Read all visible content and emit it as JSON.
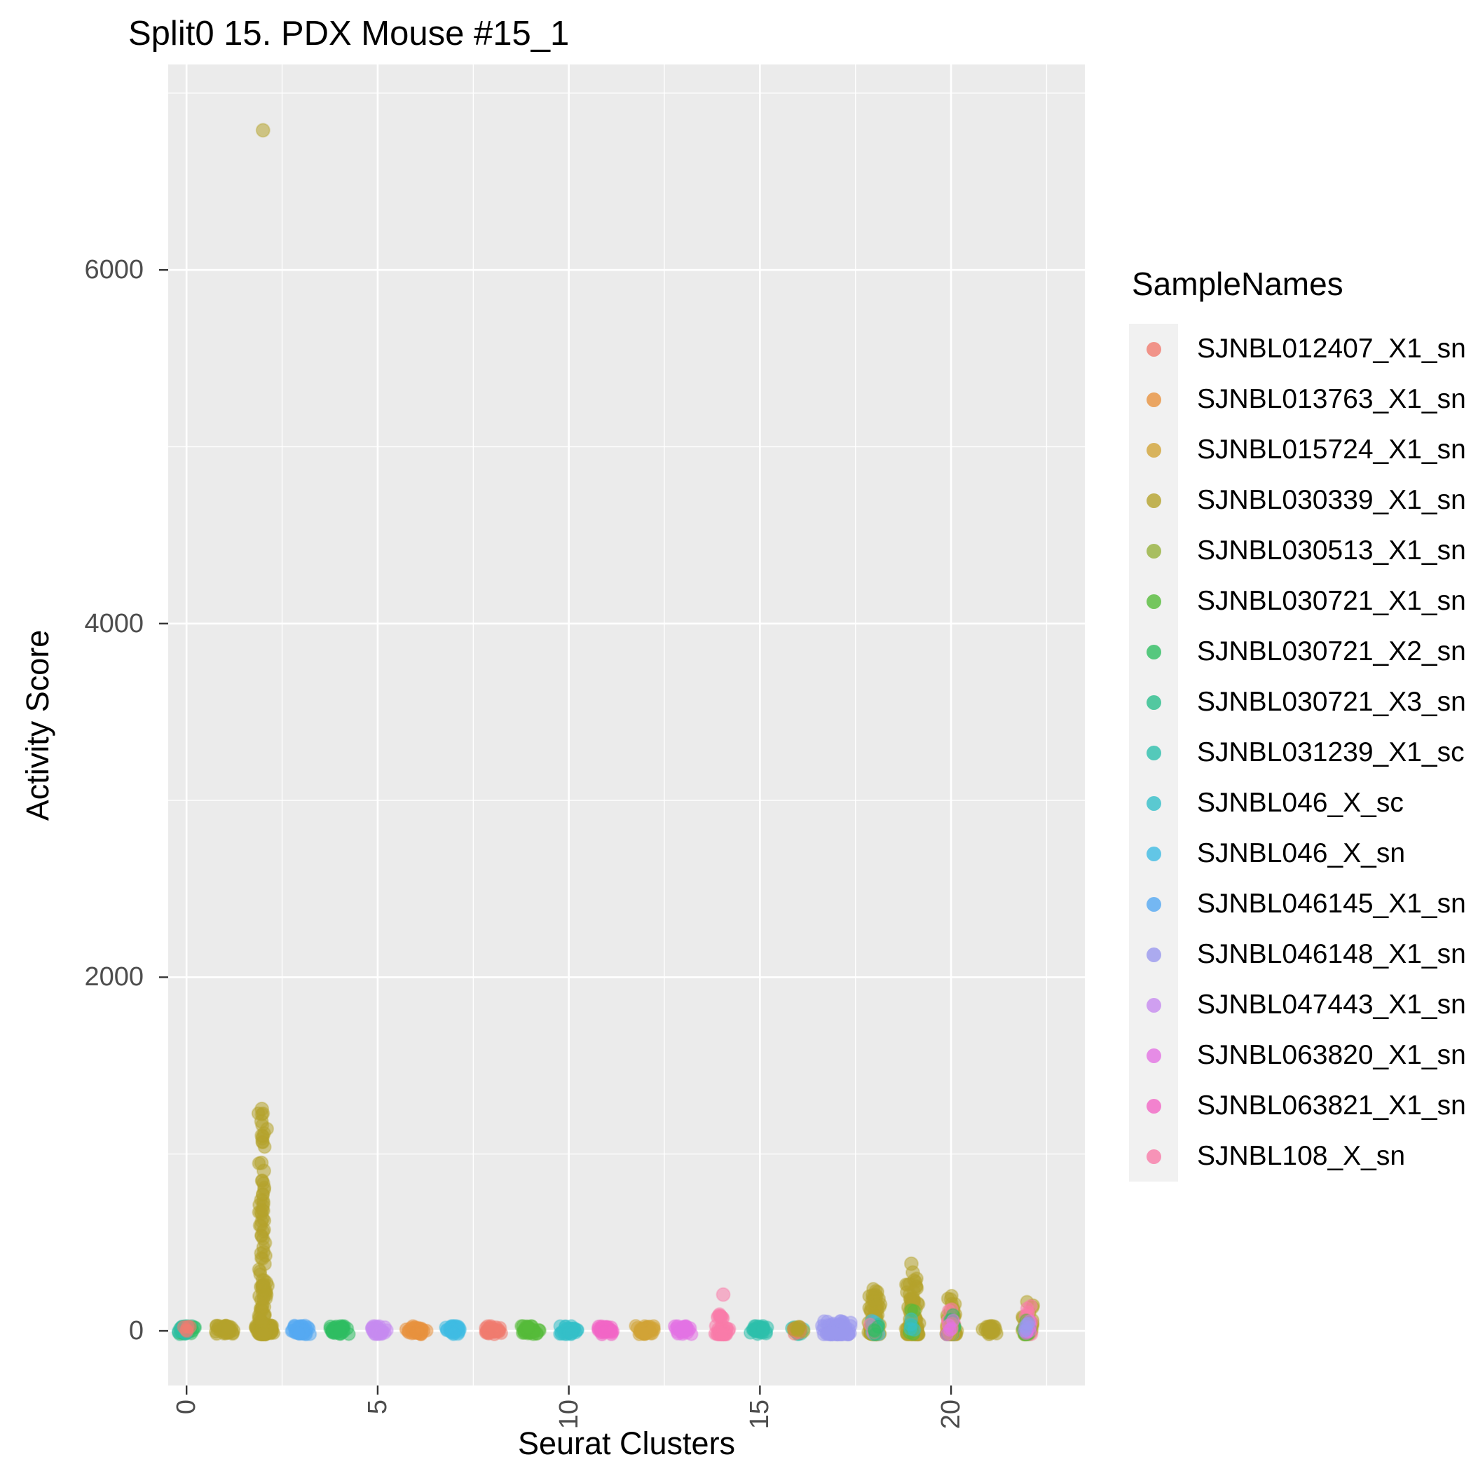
{
  "legend": {
    "title": "SampleNames",
    "items": [
      "SJNBL012407_X1_sn",
      "SJNBL013763_X1_sn",
      "SJNBL015724_X1_sn",
      "SJNBL030339_X1_sn",
      "SJNBL030513_X1_sn",
      "SJNBL030721_X1_sn",
      "SJNBL030721_X2_sn",
      "SJNBL030721_X3_sn",
      "SJNBL031239_X1_sc",
      "SJNBL046_X_sc",
      "SJNBL046_X_sn",
      "SJNBL046145_X1_sn",
      "SJNBL046148_X1_sn",
      "SJNBL047443_X1_sn",
      "SJNBL063820_X1_sn",
      "SJNBL063821_X1_sn",
      "SJNBL108_X_sn"
    ]
  },
  "chart_data": {
    "type": "scatter",
    "title": "Split0 15. PDX Mouse #15_1",
    "xlabel": "Seurat Clusters",
    "ylabel": "Activity Score",
    "x_ticks": [
      0,
      5,
      10,
      15,
      20
    ],
    "x_minor_ticks": [
      2.5,
      7.5,
      12.5,
      17.5,
      22.5
    ],
    "y_ticks": [
      0,
      2000,
      4000,
      6000
    ],
    "y_minor_ticks": [
      1000,
      3000,
      5000,
      7000
    ],
    "xlim": [
      -0.48,
      23.5
    ],
    "ylim": [
      -309,
      7162
    ],
    "panel_bg": "#EBEBEB",
    "grid_color": "#FFFFFF",
    "tick_color": "#333333",
    "point_alpha": 0.55,
    "palette": {
      "SJNBL012407_X1_sn": "#F17C6F",
      "SJNBL013763_X1_sn": "#E8923E",
      "SJNBL015724_X1_sn": "#D2A437",
      "SJNBL030339_X1_sn": "#B5A32C",
      "SJNBL030513_X1_sn": "#96B13C",
      "SJNBL030721_X1_sn": "#55BB3A",
      "SJNBL030721_X2_sn": "#2FBE62",
      "SJNBL030721_X3_sn": "#2BBE8C",
      "SJNBL031239_X1_sc": "#2DBFAC",
      "SJNBL046_X_sc": "#35BFC9",
      "SJNBL046_X_sn": "#3FBCE3",
      "SJNBL046145_X1_sn": "#55A9F2",
      "SJNBL046148_X1_sn": "#9A99EF",
      "SJNBL047443_X1_sn": "#C78BF0",
      "SJNBL063820_X1_sn": "#E373E4",
      "SJNBL063821_X1_sn": "#F266C6",
      "SJNBL108_X_sn": "#F97CA9"
    },
    "clusters": [
      {
        "x": 0,
        "groups": [
          {
            "sample": "SJNBL030721_X3_sn",
            "n": 24,
            "spread": 0.28,
            "ymax": 30,
            "pow": 1
          },
          {
            "sample": "SJNBL030721_X2_sn",
            "n": 14,
            "spread": 0.26,
            "ymax": 28,
            "pow": 1
          },
          {
            "sample": "SJNBL031239_X1_sc",
            "n": 8,
            "spread": 0.22,
            "ymax": 26,
            "pow": 1
          },
          {
            "sample": "SJNBL012407_X1_sn",
            "n": 5,
            "spread": 0.2,
            "ymax": 24,
            "pow": 1
          }
        ],
        "outliers": []
      },
      {
        "x": 1,
        "groups": [
          {
            "sample": "SJNBL030339_X1_sn",
            "n": 42,
            "spread": 0.3,
            "ymax": 30,
            "pow": 1
          }
        ],
        "outliers": []
      },
      {
        "x": 2,
        "groups": [
          {
            "sample": "SJNBL030339_X1_sn",
            "n": 70,
            "spread": 0.3,
            "ymax": 32,
            "pow": 1
          },
          {
            "sample": "SJNBL030339_X1_sn",
            "n": 135,
            "spread": 0.13,
            "ymax": 1230,
            "pow": 3
          }
        ],
        "outliers": [
          {
            "sample": "SJNBL030339_X1_sn",
            "y": 6790
          },
          {
            "sample": "SJNBL030339_X1_sn",
            "y": 1255
          },
          {
            "sample": "SJNBL030339_X1_sn",
            "y": 1185
          },
          {
            "sample": "SJNBL030339_X1_sn",
            "y": 1105
          },
          {
            "sample": "SJNBL030339_X1_sn",
            "y": 950
          },
          {
            "sample": "SJNBL030339_X1_sn",
            "y": 905
          }
        ]
      },
      {
        "x": 3,
        "groups": [
          {
            "sample": "SJNBL046145_X1_sn",
            "n": 38,
            "spread": 0.28,
            "ymax": 30,
            "pow": 1
          }
        ],
        "outliers": []
      },
      {
        "x": 4,
        "groups": [
          {
            "sample": "SJNBL030721_X2_sn",
            "n": 34,
            "spread": 0.26,
            "ymax": 28,
            "pow": 1
          }
        ],
        "outliers": []
      },
      {
        "x": 5,
        "groups": [
          {
            "sample": "SJNBL047443_X1_sn",
            "n": 30,
            "spread": 0.26,
            "ymax": 28,
            "pow": 1
          }
        ],
        "outliers": []
      },
      {
        "x": 6,
        "groups": [
          {
            "sample": "SJNBL013763_X1_sn",
            "n": 40,
            "spread": 0.3,
            "ymax": 28,
            "pow": 1
          }
        ],
        "outliers": []
      },
      {
        "x": 7,
        "groups": [
          {
            "sample": "SJNBL046_X_sn",
            "n": 36,
            "spread": 0.28,
            "ymax": 28,
            "pow": 1
          }
        ],
        "outliers": []
      },
      {
        "x": 8,
        "groups": [
          {
            "sample": "SJNBL012407_X1_sn",
            "n": 32,
            "spread": 0.26,
            "ymax": 28,
            "pow": 1
          }
        ],
        "outliers": []
      },
      {
        "x": 9,
        "groups": [
          {
            "sample": "SJNBL030721_X1_sn",
            "n": 36,
            "spread": 0.28,
            "ymax": 28,
            "pow": 1
          }
        ],
        "outliers": []
      },
      {
        "x": 10,
        "groups": [
          {
            "sample": "SJNBL046_X_sc",
            "n": 34,
            "spread": 0.28,
            "ymax": 28,
            "pow": 1
          }
        ],
        "outliers": []
      },
      {
        "x": 11,
        "groups": [
          {
            "sample": "SJNBL063821_X1_sn",
            "n": 34,
            "spread": 0.26,
            "ymax": 28,
            "pow": 1
          }
        ],
        "outliers": []
      },
      {
        "x": 12,
        "groups": [
          {
            "sample": "SJNBL015724_X1_sn",
            "n": 40,
            "spread": 0.3,
            "ymax": 28,
            "pow": 1
          }
        ],
        "outliers": []
      },
      {
        "x": 13,
        "groups": [
          {
            "sample": "SJNBL063820_X1_sn",
            "n": 32,
            "spread": 0.26,
            "ymax": 28,
            "pow": 1
          }
        ],
        "outliers": []
      },
      {
        "x": 14,
        "groups": [
          {
            "sample": "SJNBL108_X_sn",
            "n": 44,
            "spread": 0.2,
            "ymax": 95,
            "pow": 2.2
          }
        ],
        "outliers": [
          {
            "sample": "SJNBL108_X_sn",
            "y": 205
          }
        ]
      },
      {
        "x": 15,
        "groups": [
          {
            "sample": "SJNBL031239_X1_sc",
            "n": 36,
            "spread": 0.28,
            "ymax": 28,
            "pow": 1
          }
        ],
        "outliers": []
      },
      {
        "x": 16,
        "groups": [
          {
            "sample": "SJNBL031239_X1_sc",
            "n": 12,
            "spread": 0.18,
            "ymax": 26,
            "pow": 1
          },
          {
            "sample": "SJNBL012407_X1_sn",
            "n": 10,
            "spread": 0.18,
            "ymax": 26,
            "pow": 1
          },
          {
            "sample": "SJNBL030339_X1_sn",
            "n": 8,
            "spread": 0.16,
            "ymax": 24,
            "pow": 1
          }
        ],
        "outliers": []
      },
      {
        "x": 17,
        "groups": [
          {
            "sample": "SJNBL046148_X1_sn",
            "n": 95,
            "spread": 0.42,
            "ymax": 60,
            "pow": 2.2
          }
        ],
        "outliers": []
      },
      {
        "x": 18,
        "groups": [
          {
            "sample": "SJNBL030339_X1_sn",
            "n": 85,
            "spread": 0.18,
            "ymax": 250,
            "pow": 2.6
          },
          {
            "sample": "SJNBL046_X_sn",
            "n": 6,
            "spread": 0.14,
            "ymax": 60,
            "pow": 1.6
          },
          {
            "sample": "SJNBL031239_X1_sc",
            "n": 5,
            "spread": 0.14,
            "ymax": 50,
            "pow": 1.6
          },
          {
            "sample": "SJNBL108_X_sn",
            "n": 4,
            "spread": 0.12,
            "ymax": 40,
            "pow": 1.5
          },
          {
            "sample": "SJNBL030721_X2_sn",
            "n": 4,
            "spread": 0.12,
            "ymax": 40,
            "pow": 1.5
          }
        ],
        "outliers": []
      },
      {
        "x": 19,
        "groups": [
          {
            "sample": "SJNBL030339_X1_sn",
            "n": 95,
            "spread": 0.2,
            "ymax": 300,
            "pow": 2.6
          },
          {
            "sample": "SJNBL030721_X1_sn",
            "n": 6,
            "spread": 0.14,
            "ymax": 120,
            "pow": 1.8
          },
          {
            "sample": "SJNBL046_X_sc",
            "n": 4,
            "spread": 0.12,
            "ymax": 80,
            "pow": 1.6
          }
        ],
        "outliers": [
          {
            "sample": "SJNBL030339_X1_sn",
            "y": 380
          },
          {
            "sample": "SJNBL030339_X1_sn",
            "y": 330
          }
        ]
      },
      {
        "x": 20,
        "groups": [
          {
            "sample": "SJNBL030339_X1_sn",
            "n": 55,
            "spread": 0.18,
            "ymax": 230,
            "pow": 2.4
          },
          {
            "sample": "SJNBL108_X_sn",
            "n": 10,
            "spread": 0.14,
            "ymax": 150,
            "pow": 1.8
          },
          {
            "sample": "SJNBL030721_X2_sn",
            "n": 8,
            "spread": 0.14,
            "ymax": 120,
            "pow": 1.8
          },
          {
            "sample": "SJNBL015724_X1_sn",
            "n": 6,
            "spread": 0.12,
            "ymax": 80,
            "pow": 1.6
          },
          {
            "sample": "SJNBL063820_X1_sn",
            "n": 5,
            "spread": 0.12,
            "ymax": 60,
            "pow": 1.5
          }
        ],
        "outliers": []
      },
      {
        "x": 21,
        "groups": [
          {
            "sample": "SJNBL030339_X1_sn",
            "n": 26,
            "spread": 0.24,
            "ymax": 30,
            "pow": 1
          }
        ],
        "outliers": []
      },
      {
        "x": 22,
        "groups": [
          {
            "sample": "SJNBL030339_X1_sn",
            "n": 24,
            "spread": 0.18,
            "ymax": 175,
            "pow": 2.2
          },
          {
            "sample": "SJNBL108_X_sn",
            "n": 16,
            "spread": 0.16,
            "ymax": 150,
            "pow": 2
          },
          {
            "sample": "SJNBL030721_X1_sn",
            "n": 10,
            "spread": 0.14,
            "ymax": 70,
            "pow": 1.8
          },
          {
            "sample": "SJNBL063820_X1_sn",
            "n": 6,
            "spread": 0.12,
            "ymax": 60,
            "pow": 1.6
          },
          {
            "sample": "SJNBL046148_X1_sn",
            "n": 5,
            "spread": 0.12,
            "ymax": 50,
            "pow": 1.5
          }
        ],
        "outliers": []
      }
    ]
  }
}
